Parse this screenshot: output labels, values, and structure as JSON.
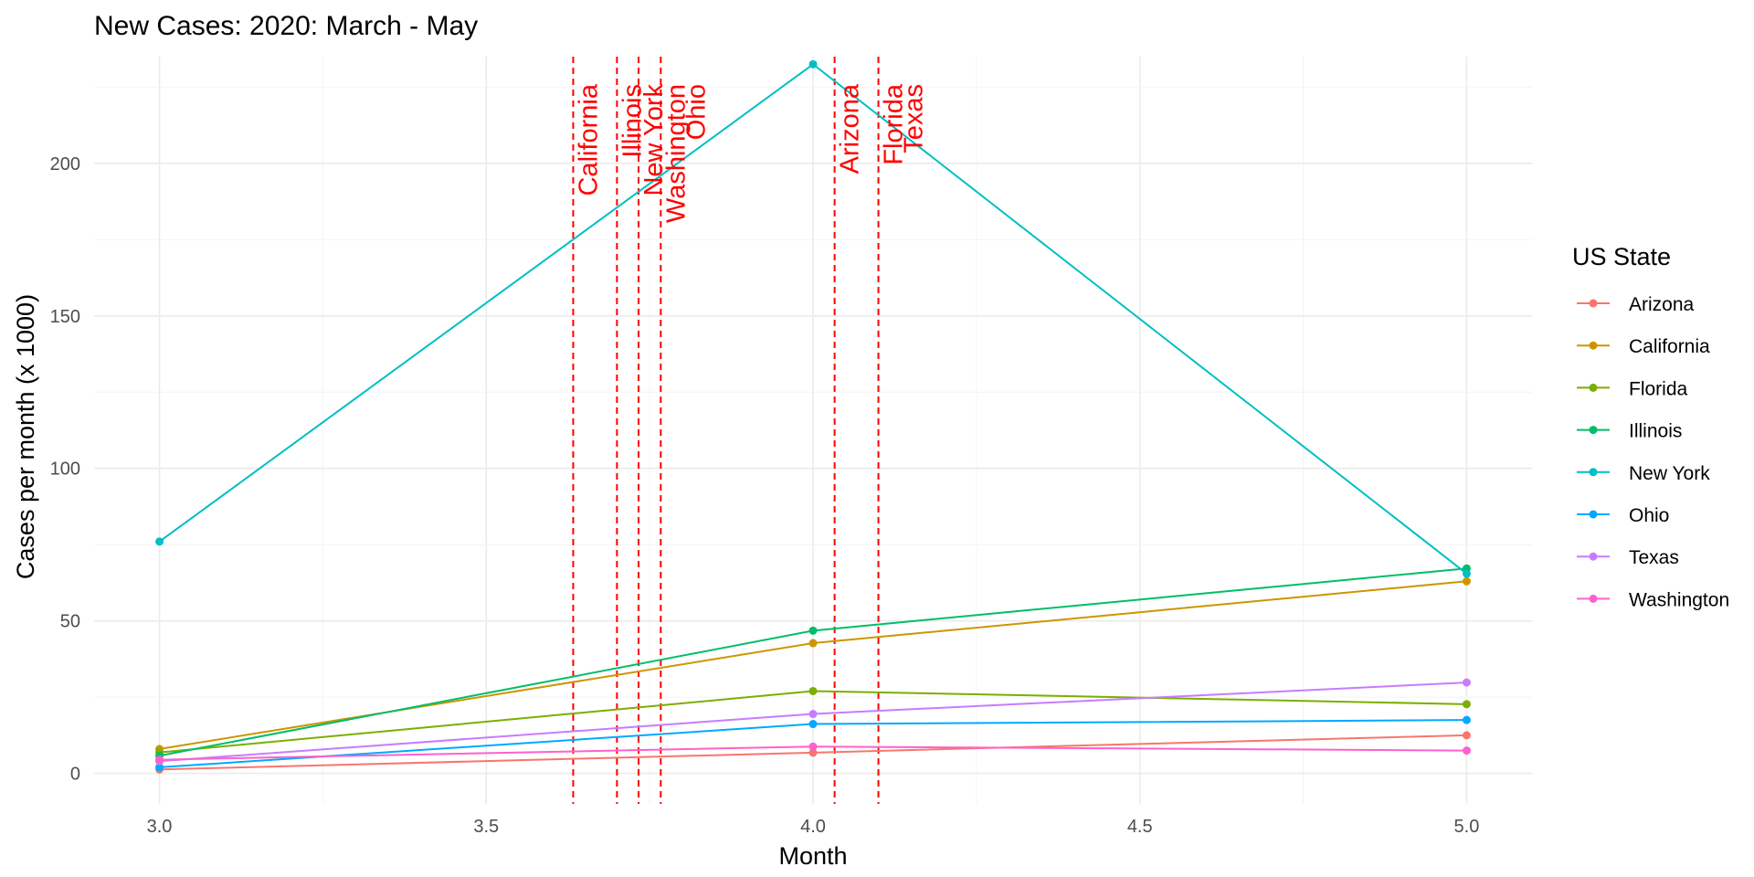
{
  "chart_data": {
    "type": "line",
    "title": "New Cases: 2020: March - May",
    "xlabel": "Month",
    "ylabel": "Cases per month (x 1000)",
    "x": [
      3,
      4,
      5
    ],
    "xlim": [
      2.9,
      5.1
    ],
    "ylim": [
      -10,
      235
    ],
    "xticks": [
      3.0,
      3.5,
      4.0,
      4.5,
      5.0
    ],
    "xtick_labels": [
      "3.0",
      "3.5",
      "4.0",
      "4.5",
      "5.0"
    ],
    "yticks": [
      0,
      50,
      100,
      150,
      200
    ],
    "ytick_labels": [
      "0",
      "50",
      "100",
      "150",
      "200"
    ],
    "grid": true,
    "legend": {
      "title": "US State",
      "position": "right"
    },
    "series": [
      {
        "name": "Arizona",
        "color": "#F8766D",
        "values": [
          1.3,
          6.8,
          12.5
        ]
      },
      {
        "name": "California",
        "color": "#CD9600",
        "values": [
          8.0,
          42.7,
          63.0
        ]
      },
      {
        "name": "Florida",
        "color": "#7CAE00",
        "values": [
          6.9,
          27.0,
          22.7
        ]
      },
      {
        "name": "Illinois",
        "color": "#00BE67",
        "values": [
          5.8,
          46.8,
          67.2
        ]
      },
      {
        "name": "New York",
        "color": "#00BFC4",
        "values": [
          76.0,
          232.5,
          65.5
        ]
      },
      {
        "name": "Ohio",
        "color": "#00A9FF",
        "values": [
          2.0,
          16.2,
          17.5
        ]
      },
      {
        "name": "Texas",
        "color": "#C77CFF",
        "values": [
          4.0,
          19.5,
          29.8
        ]
      },
      {
        "name": "Washington",
        "color": "#FF61CC",
        "values": [
          4.5,
          8.8,
          7.5
        ]
      }
    ],
    "annotations": {
      "color": "#FF0000",
      "lines": [
        {
          "x": 3.633,
          "label": "California"
        },
        {
          "x": 3.7,
          "label": "Illinois"
        },
        {
          "x": 3.733,
          "label": "New York"
        },
        {
          "x": 3.767,
          "label": "Washington"
        },
        {
          "x": 3.767,
          "label": "Ohio"
        },
        {
          "x": 4.033,
          "label": "Arizona"
        },
        {
          "x": 4.1,
          "label": "Florida"
        },
        {
          "x": 4.1,
          "label": "Texas"
        }
      ]
    }
  }
}
